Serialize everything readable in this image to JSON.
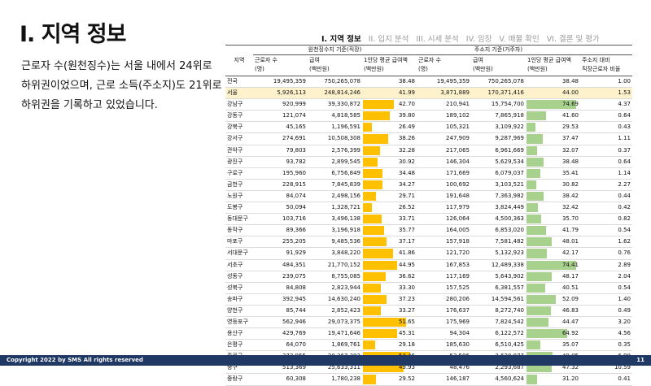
{
  "title": "I. 지역 정보",
  "nav": [
    "I. 지역 정보",
    "II. 입지 분석",
    "III. 시세 분석",
    "IV. 임장",
    "V. 매물 확인",
    "VI. 결론 및 평가"
  ],
  "body_text": "근로자 수(원천징수)는 서울 내에서 24위로 하위권이었으며, 근로 소득(주소지)도 21위로 하위권을 기록하고 있었습니다.",
  "table": {
    "region_header": "지역",
    "group1": "원천징수지 기준(직장)",
    "group2": "주소지 기준(거주자)",
    "cols": [
      "근로자 수\n(명)",
      "급여\n(백만원)",
      "1인당 평균 급여액\n(백만원)",
      "근로자 수\n(명)",
      "급여\n(백만원)",
      "1인당 평균 급여액\n(백만원)",
      "주소지 대비\n직장근로자 비율"
    ],
    "rows": [
      [
        "전국",
        "19,495,359",
        "750,265,078",
        "38.48",
        "19,495,359",
        "750,265,078",
        "38.48",
        "1.00"
      ],
      [
        "서울",
        "5,926,113",
        "248,814,246",
        "41.99",
        "3,871,889",
        "170,371,416",
        "44.00",
        "1.53"
      ],
      [
        "강남구",
        "920,999",
        "39,330,872",
        "42.70",
        "210,941",
        "15,754,700",
        "74.69",
        "4.37"
      ],
      [
        "강동구",
        "121,074",
        "4,818,585",
        "39.80",
        "189,102",
        "7,865,918",
        "41.60",
        "0.64"
      ],
      [
        "강북구",
        "45,165",
        "1,196,591",
        "26.49",
        "105,321",
        "3,109,922",
        "29.53",
        "0.43"
      ],
      [
        "강서구",
        "274,691",
        "10,508,308",
        "38.26",
        "247,909",
        "9,287,969",
        "37.47",
        "1.11"
      ],
      [
        "관악구",
        "79,803",
        "2,576,399",
        "32.28",
        "217,065",
        "6,961,669",
        "32.07",
        "0.37"
      ],
      [
        "광진구",
        "93,782",
        "2,899,545",
        "30.92",
        "146,304",
        "5,629,534",
        "38.48",
        "0.64"
      ],
      [
        "구로구",
        "195,960",
        "6,756,849",
        "34.48",
        "171,669",
        "6,079,037",
        "35.41",
        "1.14"
      ],
      [
        "금천구",
        "228,915",
        "7,845,839",
        "34.27",
        "100,692",
        "3,103,521",
        "30.82",
        "2.27"
      ],
      [
        "노원구",
        "84,074",
        "2,498,156",
        "29.71",
        "191,648",
        "7,363,982",
        "38.42",
        "0.44"
      ],
      [
        "도봉구",
        "50,094",
        "1,328,721",
        "26.52",
        "117,979",
        "3,824,449",
        "32.42",
        "0.42"
      ],
      [
        "동대문구",
        "103,716",
        "3,496,138",
        "33.71",
        "126,064",
        "4,500,363",
        "35.70",
        "0.82"
      ],
      [
        "동작구",
        "89,366",
        "3,196,918",
        "35.77",
        "164,005",
        "6,853,020",
        "41.79",
        "0.54"
      ],
      [
        "마포구",
        "255,205",
        "9,485,536",
        "37.17",
        "157,918",
        "7,581,482",
        "48.01",
        "1.62"
      ],
      [
        "서대문구",
        "91,929",
        "3,848,220",
        "41.86",
        "121,720",
        "5,132,923",
        "42.17",
        "0.76"
      ],
      [
        "서초구",
        "484,351",
        "21,770,152",
        "44.95",
        "167,853",
        "12,489,338",
        "74.41",
        "2.89"
      ],
      [
        "성동구",
        "239,075",
        "8,755,085",
        "36.62",
        "117,169",
        "5,643,902",
        "48.17",
        "2.04"
      ],
      [
        "성북구",
        "84,808",
        "2,823,944",
        "33.30",
        "157,525",
        "6,381,557",
        "40.51",
        "0.54"
      ],
      [
        "송파구",
        "392,945",
        "14,630,240",
        "37.23",
        "280,206",
        "14,594,561",
        "52.09",
        "1.40"
      ],
      [
        "양천구",
        "85,744",
        "2,852,423",
        "33.27",
        "176,637",
        "8,272,740",
        "46.83",
        "0.49"
      ],
      [
        "영등포구",
        "562,946",
        "29,073,375",
        "51.65",
        "175,969",
        "7,824,542",
        "44.47",
        "3.20"
      ],
      [
        "용산구",
        "429,769",
        "19,471,646",
        "45.31",
        "94,304",
        "6,122,572",
        "64.92",
        "4.56"
      ],
      [
        "은평구",
        "64,070",
        "1,869,761",
        "29.18",
        "185,630",
        "6,510,425",
        "35.07",
        "0.35"
      ],
      [
        "종로구",
        "373,955",
        "20,367,393",
        "54.46",
        "53,596",
        "2,628,977",
        "49.05",
        "6.98"
      ],
      [
        "중구",
        "513,369",
        "25,633,311",
        "49.93",
        "48,476",
        "2,293,687",
        "47.32",
        "10.59"
      ],
      [
        "중랑구",
        "60,308",
        "1,780,238",
        "29.52",
        "146,187",
        "4,560,624",
        "31.20",
        "0.41"
      ]
    ]
  },
  "colors": {
    "bar_work": "#ffc000",
    "bar_home": "#a9d18e",
    "highlight_row": "#fdf2cc",
    "footer_bg": "#1f3864"
  },
  "footer": {
    "copyright": "Copyright 2022 by SMS All rights reserved",
    "page": "11"
  }
}
